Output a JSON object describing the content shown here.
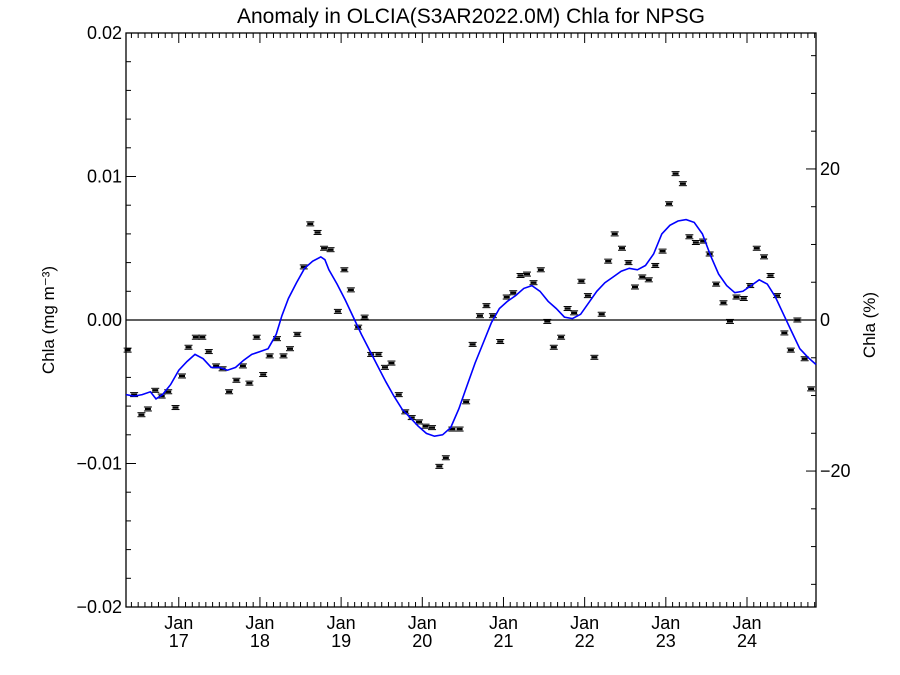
{
  "chart_data": {
    "type": "line",
    "title": "Anomaly in OLCIA(S3AR2022.0M) Chla for NPSG",
    "ylabel_left": "Chla (mg m⁻³)",
    "ylabel_right": "Chla (%)",
    "xlim": [
      2016.35,
      2024.85
    ],
    "ylim": [
      -0.02,
      0.02
    ],
    "ylim_right": [
      -38,
      38
    ],
    "x_ticks": [
      {
        "x": 2017.0,
        "month": "Jan",
        "year": "17"
      },
      {
        "x": 2018.0,
        "month": "Jan",
        "year": "18"
      },
      {
        "x": 2019.0,
        "month": "Jan",
        "year": "19"
      },
      {
        "x": 2020.0,
        "month": "Jan",
        "year": "20"
      },
      {
        "x": 2021.0,
        "month": "Jan",
        "year": "21"
      },
      {
        "x": 2022.0,
        "month": "Jan",
        "year": "22"
      },
      {
        "x": 2023.0,
        "month": "Jan",
        "year": "23"
      },
      {
        "x": 2024.0,
        "month": "Jan",
        "year": "24"
      }
    ],
    "y_ticks_left": [
      "0.02",
      "0.01",
      "0.00",
      "−0.01",
      "−0.02"
    ],
    "y_ticks_left_values": [
      0.02,
      0.01,
      0.0,
      -0.01,
      -0.02
    ],
    "y_ticks_right": [
      "20",
      "0",
      "−20"
    ],
    "y_ticks_right_values": [
      20,
      0,
      -20
    ],
    "zero_line": 0.0,
    "colors": {
      "smooth": "#0000ff",
      "points": "#000000",
      "zero_line": "#000000"
    },
    "series": [
      {
        "kind": "monthly_anomaly_points",
        "x": [
          2016.37,
          2016.45,
          2016.54,
          2016.62,
          2016.71,
          2016.79,
          2016.87,
          2016.96,
          2017.04,
          2017.12,
          2017.21,
          2017.29,
          2017.37,
          2017.46,
          2017.54,
          2017.62,
          2017.71,
          2017.79,
          2017.87,
          2017.96,
          2018.04,
          2018.12,
          2018.21,
          2018.29,
          2018.37,
          2018.46,
          2018.54,
          2018.62,
          2018.71,
          2018.79,
          2018.87,
          2018.96,
          2019.04,
          2019.12,
          2019.21,
          2019.29,
          2019.37,
          2019.46,
          2019.54,
          2019.62,
          2019.71,
          2019.79,
          2019.87,
          2019.96,
          2020.04,
          2020.12,
          2020.21,
          2020.29,
          2020.37,
          2020.46,
          2020.54,
          2020.62,
          2020.71,
          2020.79,
          2020.87,
          2020.96,
          2021.04,
          2021.12,
          2021.21,
          2021.29,
          2021.37,
          2021.46,
          2021.54,
          2021.62,
          2021.71,
          2021.79,
          2021.87,
          2021.96,
          2022.04,
          2022.12,
          2022.21,
          2022.29,
          2022.37,
          2022.46,
          2022.54,
          2022.62,
          2022.71,
          2022.79,
          2022.87,
          2022.96,
          2023.04,
          2023.12,
          2023.21,
          2023.29,
          2023.37,
          2023.46,
          2023.54,
          2023.62,
          2023.71,
          2023.79,
          2023.87,
          2023.96,
          2024.04,
          2024.12,
          2024.21,
          2024.29,
          2024.37,
          2024.46,
          2024.54,
          2024.62,
          2024.71,
          2024.79
        ],
        "y": [
          -0.0021,
          -0.0052,
          -0.0066,
          -0.0062,
          -0.0049,
          -0.0053,
          -0.005,
          -0.0061,
          -0.0039,
          -0.0019,
          -0.0012,
          -0.0012,
          -0.0022,
          -0.0032,
          -0.0034,
          -0.005,
          -0.0042,
          -0.0032,
          -0.0044,
          -0.0012,
          -0.0038,
          -0.0025,
          -0.0013,
          -0.0025,
          -0.002,
          -0.001,
          0.0037,
          0.0067,
          0.0061,
          0.005,
          0.0049,
          0.0006,
          0.0035,
          0.0021,
          -0.0005,
          0.0002,
          -0.0024,
          -0.0024,
          -0.0033,
          -0.003,
          -0.0052,
          -0.0064,
          -0.0068,
          -0.0071,
          -0.0074,
          -0.0075,
          -0.0102,
          -0.0096,
          -0.0076,
          -0.0076,
          -0.0057,
          -0.0017,
          0.0003,
          0.001,
          0.0003,
          -0.0015,
          0.0016,
          0.0019,
          0.0031,
          0.0032,
          0.0026,
          0.0035,
          -0.0001,
          -0.0019,
          -0.0012,
          0.0008,
          0.0005,
          0.0027,
          0.0017,
          -0.0026,
          0.0004,
          0.0041,
          0.006,
          0.005,
          0.004,
          0.0023,
          0.003,
          0.0028,
          0.0038,
          0.0048,
          0.0081,
          0.0102,
          0.0095,
          0.0058,
          0.0054,
          0.0055,
          0.0046,
          0.0025,
          0.0012,
          -0.0001,
          0.0016,
          0.0015,
          0.0024,
          0.005,
          0.0044,
          0.0031,
          0.0017,
          -0.0009,
          -0.0021,
          -0.0,
          -0.0027,
          -0.0048
        ]
      },
      {
        "kind": "smoothed_anomaly_line",
        "x": [
          2016.35,
          2016.45,
          2016.55,
          2016.65,
          2016.72,
          2016.8,
          2016.9,
          2017.0,
          2017.1,
          2017.2,
          2017.3,
          2017.4,
          2017.5,
          2017.6,
          2017.7,
          2017.8,
          2017.9,
          2018.0,
          2018.1,
          2018.2,
          2018.27,
          2018.35,
          2018.45,
          2018.55,
          2018.65,
          2018.75,
          2018.8,
          2018.85,
          2018.95,
          2019.05,
          2019.15,
          2019.25,
          2019.35,
          2019.45,
          2019.55,
          2019.65,
          2019.75,
          2019.85,
          2019.95,
          2020.05,
          2020.15,
          2020.25,
          2020.35,
          2020.45,
          2020.55,
          2020.65,
          2020.75,
          2020.85,
          2020.95,
          2021.05,
          2021.15,
          2021.25,
          2021.35,
          2021.45,
          2021.55,
          2021.65,
          2021.75,
          2021.85,
          2021.95,
          2022.05,
          2022.15,
          2022.25,
          2022.35,
          2022.45,
          2022.55,
          2022.65,
          2022.75,
          2022.85,
          2022.95,
          2023.05,
          2023.15,
          2023.25,
          2023.35,
          2023.45,
          2023.55,
          2023.65,
          2023.75,
          2023.85,
          2023.95,
          2024.05,
          2024.15,
          2024.25,
          2024.35,
          2024.45,
          2024.55,
          2024.65,
          2024.75,
          2024.85
        ],
        "y": [
          -0.0052,
          -0.0053,
          -0.0052,
          -0.005,
          -0.0055,
          -0.0052,
          -0.0045,
          -0.0035,
          -0.0029,
          -0.0024,
          -0.0027,
          -0.0033,
          -0.0033,
          -0.0035,
          -0.0033,
          -0.0028,
          -0.0024,
          -0.0022,
          -0.002,
          -0.001,
          0.0003,
          0.0015,
          0.0026,
          0.0036,
          0.0041,
          0.0044,
          0.0042,
          0.0035,
          0.0025,
          0.0014,
          0.0002,
          -0.001,
          -0.0021,
          -0.0032,
          -0.0043,
          -0.0053,
          -0.0062,
          -0.0068,
          -0.0074,
          -0.0079,
          -0.0081,
          -0.008,
          -0.0075,
          -0.0062,
          -0.0046,
          -0.003,
          -0.0016,
          -0.0002,
          0.0008,
          0.0013,
          0.0017,
          0.0022,
          0.0024,
          0.002,
          0.0013,
          0.0008,
          0.0002,
          0.0001,
          0.0004,
          0.0012,
          0.002,
          0.0026,
          0.003,
          0.0034,
          0.0036,
          0.0035,
          0.0038,
          0.0046,
          0.006,
          0.0066,
          0.0069,
          0.007,
          0.0068,
          0.006,
          0.0045,
          0.0032,
          0.0024,
          0.0019,
          0.002,
          0.0024,
          0.0028,
          0.0025,
          0.0016,
          0.0004,
          -0.0008,
          -0.002,
          -0.0026,
          -0.0031
        ]
      }
    ]
  }
}
